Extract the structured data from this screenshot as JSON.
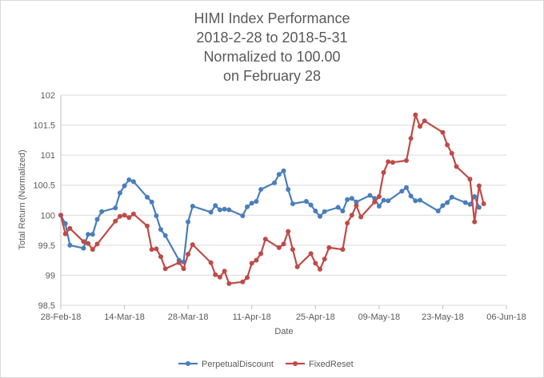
{
  "chart_data": {
    "type": "line",
    "title_lines": [
      "HIMI Index Performance",
      "2018-2-28 to 2018-5-31",
      "Normalized to 100.00",
      "on February 28"
    ],
    "xlabel": "Date",
    "ylabel": "Total Return (Normalized)",
    "ylim": [
      98.5,
      102
    ],
    "y_ticks": [
      "98.5",
      "99",
      "99.5",
      "100",
      "100.5",
      "101",
      "101.5",
      "102"
    ],
    "x_range": [
      "2018-02-28",
      "2018-06-06"
    ],
    "x_ticks": [
      {
        "date": "2018-02-28",
        "label": "28-Feb-18"
      },
      {
        "date": "2018-03-14",
        "label": "14-Mar-18"
      },
      {
        "date": "2018-03-28",
        "label": "28-Mar-18"
      },
      {
        "date": "2018-04-11",
        "label": "11-Apr-18"
      },
      {
        "date": "2018-04-25",
        "label": "25-Apr-18"
      },
      {
        "date": "2018-05-09",
        "label": "09-May-18"
      },
      {
        "date": "2018-05-23",
        "label": "23-May-18"
      },
      {
        "date": "2018-06-06",
        "label": "06-Jun-18"
      }
    ],
    "grid": "horizontal",
    "legend_position": "bottom",
    "series": [
      {
        "name": "PerpetualDiscount",
        "color": "#4a7ebb",
        "points": [
          [
            "2018-02-28",
            100.0
          ],
          [
            "2018-03-01",
            99.86
          ],
          [
            "2018-03-02",
            99.5
          ],
          [
            "2018-03-05",
            99.45
          ],
          [
            "2018-03-06",
            99.68
          ],
          [
            "2018-03-07",
            99.68
          ],
          [
            "2018-03-08",
            99.93
          ],
          [
            "2018-03-09",
            100.06
          ],
          [
            "2018-03-12",
            100.12
          ],
          [
            "2018-03-13",
            100.37
          ],
          [
            "2018-03-14",
            100.49
          ],
          [
            "2018-03-15",
            100.59
          ],
          [
            "2018-03-16",
            100.56
          ],
          [
            "2018-03-19",
            100.3
          ],
          [
            "2018-03-20",
            100.22
          ],
          [
            "2018-03-21",
            99.99
          ],
          [
            "2018-03-22",
            99.76
          ],
          [
            "2018-03-23",
            99.66
          ],
          [
            "2018-03-26",
            99.25
          ],
          [
            "2018-03-27",
            99.22
          ],
          [
            "2018-03-28",
            99.89
          ],
          [
            "2018-03-29",
            100.15
          ],
          [
            "2018-04-02",
            100.05
          ],
          [
            "2018-04-03",
            100.16
          ],
          [
            "2018-04-04",
            100.09
          ],
          [
            "2018-04-05",
            100.1
          ],
          [
            "2018-04-06",
            100.09
          ],
          [
            "2018-04-09",
            99.99
          ],
          [
            "2018-04-10",
            100.14
          ],
          [
            "2018-04-11",
            100.2
          ],
          [
            "2018-04-12",
            100.23
          ],
          [
            "2018-04-13",
            100.43
          ],
          [
            "2018-04-16",
            100.54
          ],
          [
            "2018-04-17",
            100.68
          ],
          [
            "2018-04-18",
            100.74
          ],
          [
            "2018-04-19",
            100.43
          ],
          [
            "2018-04-20",
            100.19
          ],
          [
            "2018-04-23",
            100.23
          ],
          [
            "2018-04-24",
            100.17
          ],
          [
            "2018-04-25",
            100.07
          ],
          [
            "2018-04-26",
            99.98
          ],
          [
            "2018-04-27",
            100.06
          ],
          [
            "2018-04-30",
            100.13
          ],
          [
            "2018-05-01",
            100.07
          ],
          [
            "2018-05-02",
            100.26
          ],
          [
            "2018-05-03",
            100.28
          ],
          [
            "2018-05-04",
            100.22
          ],
          [
            "2018-05-07",
            100.33
          ],
          [
            "2018-05-08",
            100.28
          ],
          [
            "2018-05-09",
            100.15
          ],
          [
            "2018-05-10",
            100.25
          ],
          [
            "2018-05-11",
            100.24
          ],
          [
            "2018-05-14",
            100.4
          ],
          [
            "2018-05-15",
            100.46
          ],
          [
            "2018-05-16",
            100.32
          ],
          [
            "2018-05-17",
            100.24
          ],
          [
            "2018-05-18",
            100.25
          ],
          [
            "2018-05-22",
            100.07
          ],
          [
            "2018-05-23",
            100.16
          ],
          [
            "2018-05-24",
            100.21
          ],
          [
            "2018-05-25",
            100.3
          ],
          [
            "2018-05-28",
            100.21
          ],
          [
            "2018-05-29",
            100.18
          ],
          [
            "2018-05-30",
            100.31
          ],
          [
            "2018-05-31",
            100.13
          ]
        ]
      },
      {
        "name": "FixedReset",
        "color": "#be4b48",
        "points": [
          [
            "2018-02-28",
            100.0
          ],
          [
            "2018-03-01",
            99.69
          ],
          [
            "2018-03-02",
            99.78
          ],
          [
            "2018-03-05",
            99.56
          ],
          [
            "2018-03-06",
            99.53
          ],
          [
            "2018-03-07",
            99.43
          ],
          [
            "2018-03-08",
            99.52
          ],
          [
            "2018-03-12",
            99.9
          ],
          [
            "2018-03-13",
            99.98
          ],
          [
            "2018-03-14",
            100.0
          ],
          [
            "2018-03-15",
            99.96
          ],
          [
            "2018-03-16",
            100.02
          ],
          [
            "2018-03-19",
            99.82
          ],
          [
            "2018-03-20",
            99.43
          ],
          [
            "2018-03-21",
            99.44
          ],
          [
            "2018-03-22",
            99.31
          ],
          [
            "2018-03-23",
            99.11
          ],
          [
            "2018-03-26",
            99.21
          ],
          [
            "2018-03-27",
            99.11
          ],
          [
            "2018-03-28",
            99.35
          ],
          [
            "2018-03-29",
            99.51
          ],
          [
            "2018-04-02",
            99.21
          ],
          [
            "2018-04-03",
            99.01
          ],
          [
            "2018-04-04",
            98.97
          ],
          [
            "2018-04-05",
            99.07
          ],
          [
            "2018-04-06",
            98.86
          ],
          [
            "2018-04-09",
            98.89
          ],
          [
            "2018-04-10",
            98.96
          ],
          [
            "2018-04-11",
            99.2
          ],
          [
            "2018-04-12",
            99.25
          ],
          [
            "2018-04-13",
            99.36
          ],
          [
            "2018-04-14",
            99.6
          ],
          [
            "2018-04-17",
            99.46
          ],
          [
            "2018-04-18",
            99.52
          ],
          [
            "2018-04-19",
            99.73
          ],
          [
            "2018-04-20",
            99.43
          ],
          [
            "2018-04-21",
            99.14
          ],
          [
            "2018-04-24",
            99.36
          ],
          [
            "2018-04-25",
            99.2
          ],
          [
            "2018-04-26",
            99.1
          ],
          [
            "2018-04-27",
            99.27
          ],
          [
            "2018-04-28",
            99.46
          ],
          [
            "2018-05-01",
            99.43
          ],
          [
            "2018-05-02",
            99.87
          ],
          [
            "2018-05-03",
            100.0
          ],
          [
            "2018-05-04",
            100.16
          ],
          [
            "2018-05-05",
            99.97
          ],
          [
            "2018-05-08",
            100.22
          ],
          [
            "2018-05-09",
            100.31
          ],
          [
            "2018-05-10",
            100.71
          ],
          [
            "2018-05-11",
            100.89
          ],
          [
            "2018-05-12",
            100.88
          ],
          [
            "2018-05-15",
            100.91
          ],
          [
            "2018-05-16",
            101.28
          ],
          [
            "2018-05-17",
            101.67
          ],
          [
            "2018-05-18",
            101.48
          ],
          [
            "2018-05-19",
            101.57
          ],
          [
            "2018-05-23",
            101.38
          ],
          [
            "2018-05-24",
            101.17
          ],
          [
            "2018-05-25",
            101.03
          ],
          [
            "2018-05-26",
            100.81
          ],
          [
            "2018-05-29",
            100.6
          ],
          [
            "2018-05-30",
            99.89
          ],
          [
            "2018-05-31",
            100.49
          ],
          [
            "2018-06-01",
            100.19
          ]
        ]
      }
    ]
  }
}
